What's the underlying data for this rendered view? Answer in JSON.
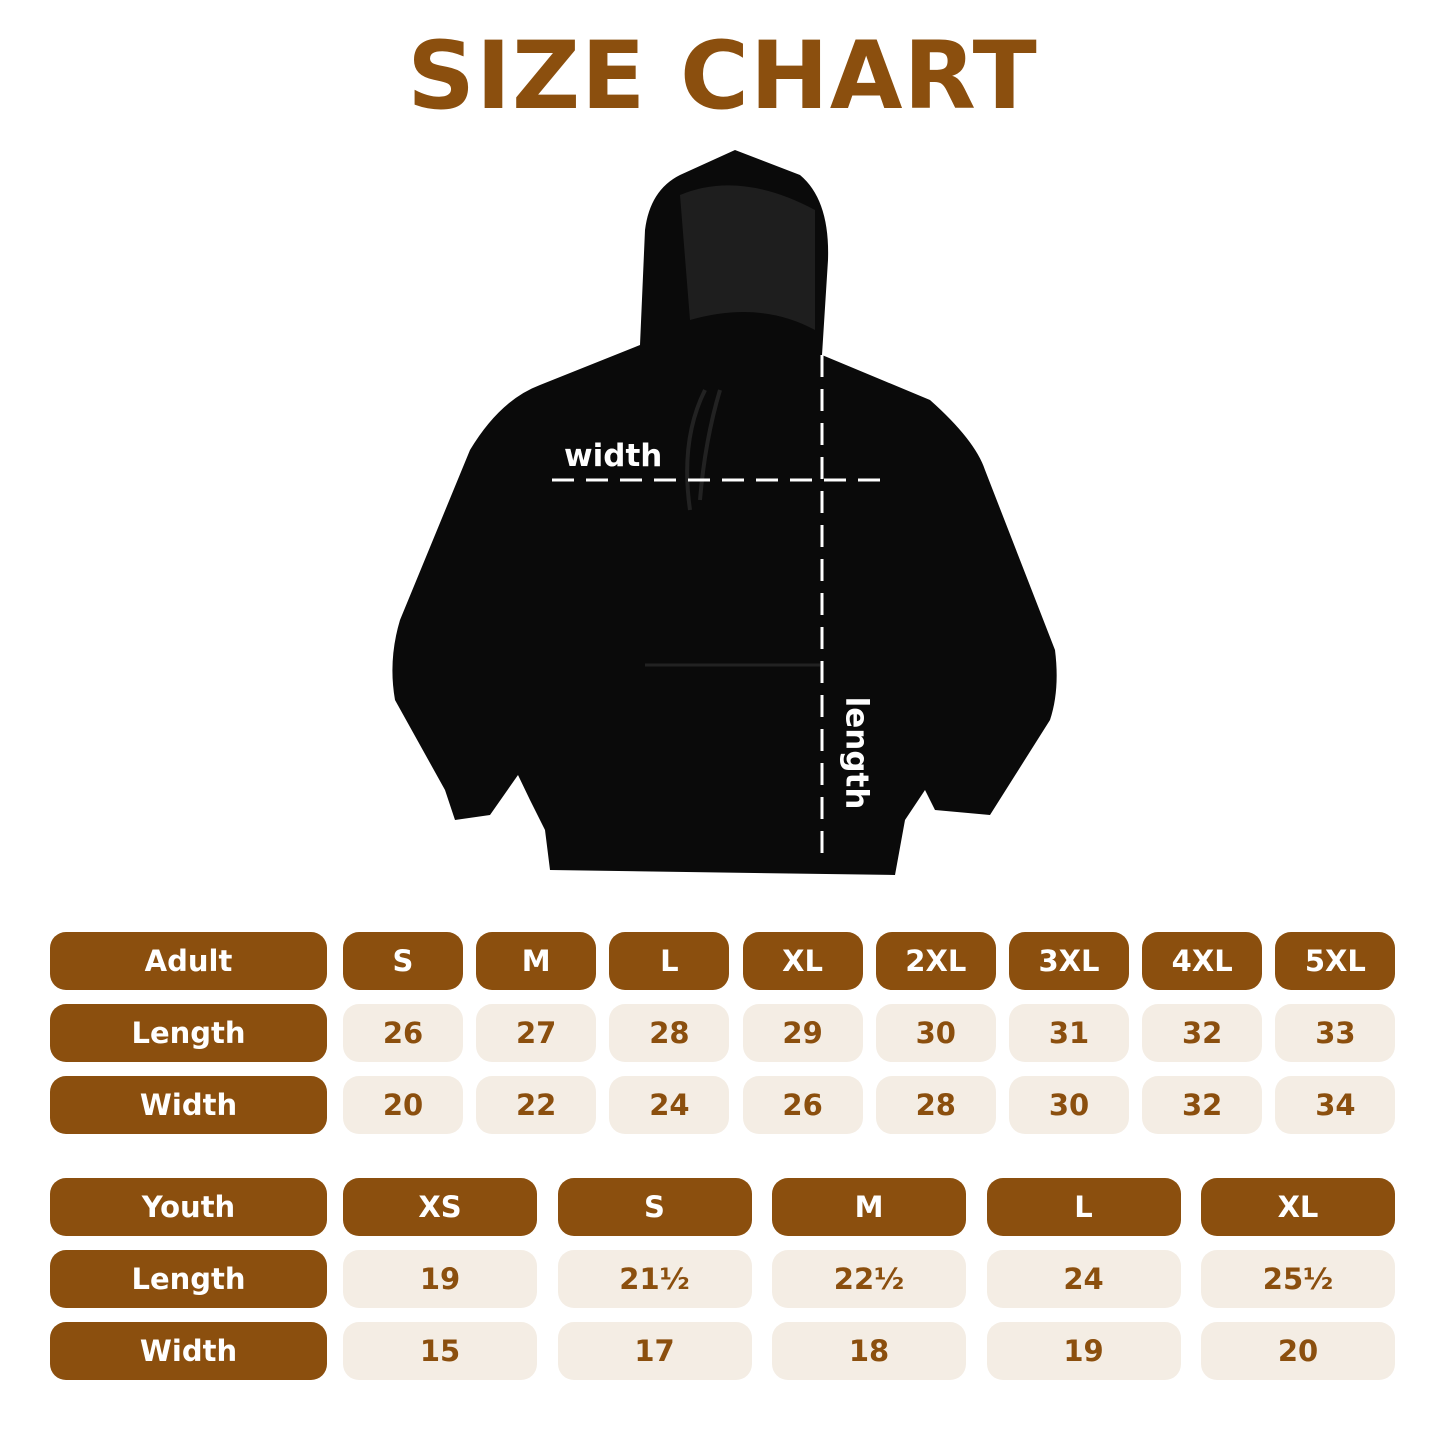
{
  "title": "SIZE CHART",
  "diagram": {
    "width_label": "width",
    "length_label": "length"
  },
  "colors": {
    "accent": "#8B4F0E",
    "cell_bg": "#F4EDE4",
    "garment": "#0a0a0a"
  },
  "adult": {
    "header": "Adult",
    "sizes": [
      "S",
      "M",
      "L",
      "XL",
      "2XL",
      "3XL",
      "4XL",
      "5XL"
    ],
    "rows": [
      {
        "label": "Length",
        "values": [
          "26",
          "27",
          "28",
          "29",
          "30",
          "31",
          "32",
          "33"
        ]
      },
      {
        "label": "Width",
        "values": [
          "20",
          "22",
          "24",
          "26",
          "28",
          "30",
          "32",
          "34"
        ]
      }
    ]
  },
  "youth": {
    "header": "Youth",
    "sizes": [
      "XS",
      "S",
      "M",
      "L",
      "XL"
    ],
    "rows": [
      {
        "label": "Length",
        "values": [
          "19",
          "21½",
          "22½",
          "24",
          "25½"
        ]
      },
      {
        "label": "Width",
        "values": [
          "15",
          "17",
          "18",
          "19",
          "20"
        ]
      }
    ]
  }
}
